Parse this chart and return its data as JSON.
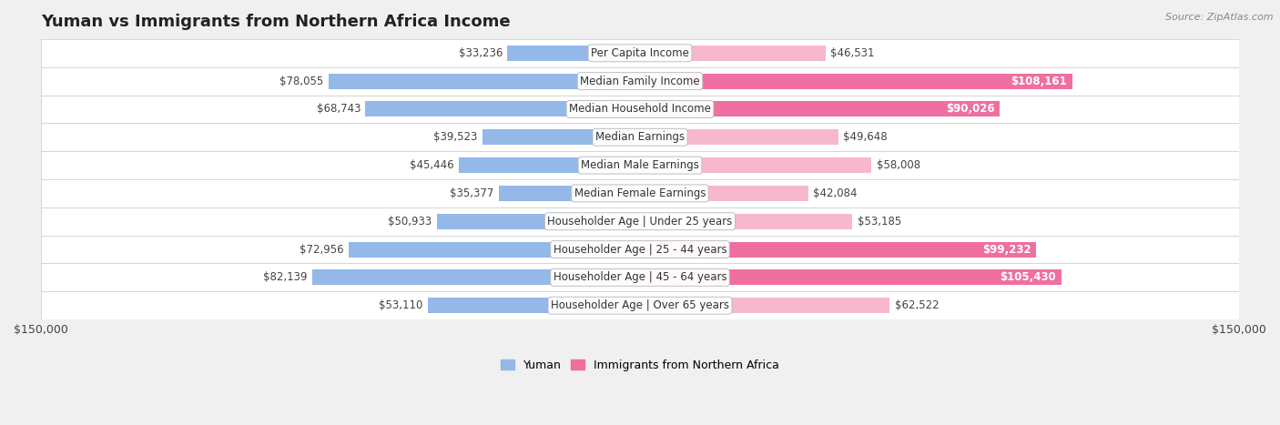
{
  "title": "Yuman vs Immigrants from Northern Africa Income",
  "source": "Source: ZipAtlas.com",
  "categories": [
    "Per Capita Income",
    "Median Family Income",
    "Median Household Income",
    "Median Earnings",
    "Median Male Earnings",
    "Median Female Earnings",
    "Householder Age | Under 25 years",
    "Householder Age | 25 - 44 years",
    "Householder Age | 45 - 64 years",
    "Householder Age | Over 65 years"
  ],
  "yuman_values": [
    33236,
    78055,
    68743,
    39523,
    45446,
    35377,
    50933,
    72956,
    82139,
    53110
  ],
  "immigrant_values": [
    46531,
    108161,
    90026,
    49648,
    58008,
    42084,
    53185,
    99232,
    105430,
    62522
  ],
  "yuman_color": "#94b8e8",
  "immigrant_color_light": "#f7b8cf",
  "immigrant_color_dark": "#ee6fa0",
  "yuman_label": "Yuman",
  "immigrant_label": "Immigrants from Northern Africa",
  "axis_max": 150000,
  "title_fontsize": 13,
  "label_fontsize": 8.5,
  "tick_fontsize": 9,
  "background_color": "#f0f0f0",
  "row_bg_color": "#ffffff",
  "row_alt_color": "#e8e8e8",
  "bar_height": 0.55,
  "dark_threshold": 80000
}
